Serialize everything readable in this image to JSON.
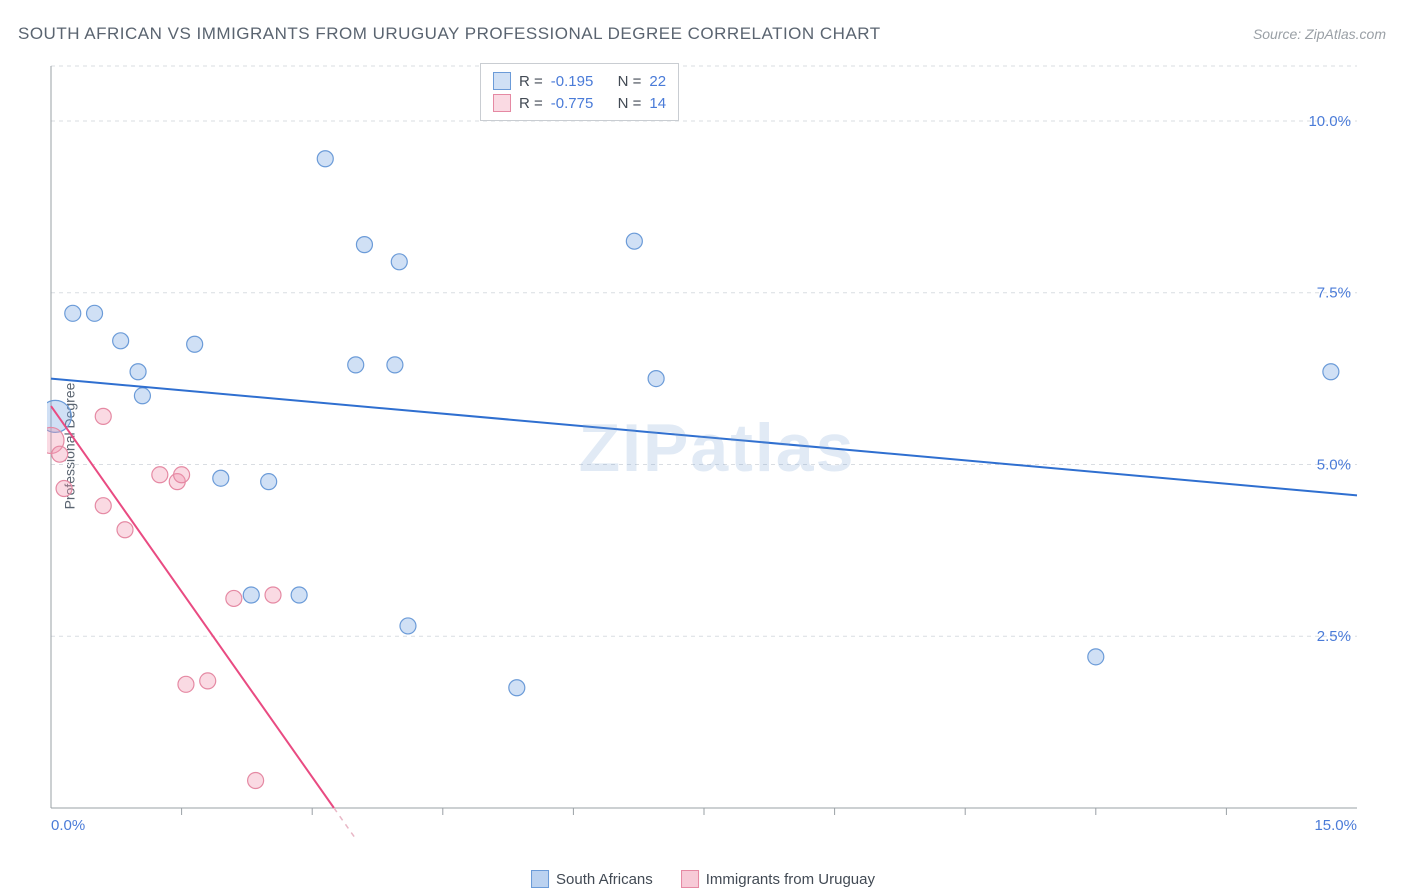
{
  "title": "SOUTH AFRICAN VS IMMIGRANTS FROM URUGUAY PROFESSIONAL DEGREE CORRELATION CHART",
  "source": "Source: ZipAtlas.com",
  "ylabel": "Professional Degree",
  "watermark": "ZIPatlas",
  "chart": {
    "type": "scatter",
    "xlim": [
      0,
      15
    ],
    "ylim": [
      0,
      10.8
    ],
    "xticks_major": [
      0,
      15
    ],
    "xticks_minor": [
      1.5,
      3.0,
      4.5,
      6.0,
      7.5,
      9.0,
      10.5,
      12,
      13.5
    ],
    "yticks": [
      2.5,
      5.0,
      7.5,
      10.0
    ],
    "xtick_labels": {
      "0": "0.0%",
      "15": "15.0%"
    },
    "ytick_labels": {
      "2.5": "2.5%",
      "5.0": "5.0%",
      "7.5": "7.5%",
      "10.0": "10.0%"
    },
    "grid_color": "#d9dde2",
    "axis_color": "#9aa0a6",
    "tick_color": "#4a7bd8",
    "background_color": "#ffffff",
    "series": [
      {
        "name": "South Africans",
        "fill": "rgba(120,165,225,0.35)",
        "stroke": "#6b9bd8",
        "line_color": "#2f6fd0",
        "line_width": 2,
        "R": "-0.195",
        "N": "22",
        "points": [
          {
            "x": 0.05,
            "y": 5.7,
            "r": 16
          },
          {
            "x": 0.25,
            "y": 7.2,
            "r": 8
          },
          {
            "x": 0.5,
            "y": 7.2,
            "r": 8
          },
          {
            "x": 0.8,
            "y": 6.8,
            "r": 8
          },
          {
            "x": 1.0,
            "y": 6.35,
            "r": 8
          },
          {
            "x": 1.05,
            "y": 6.0,
            "r": 8
          },
          {
            "x": 1.65,
            "y": 6.75,
            "r": 8
          },
          {
            "x": 1.95,
            "y": 4.8,
            "r": 8
          },
          {
            "x": 2.3,
            "y": 3.1,
            "r": 8
          },
          {
            "x": 2.5,
            "y": 4.75,
            "r": 8
          },
          {
            "x": 2.85,
            "y": 3.1,
            "r": 8
          },
          {
            "x": 3.15,
            "y": 9.45,
            "r": 8
          },
          {
            "x": 3.5,
            "y": 6.45,
            "r": 8
          },
          {
            "x": 3.6,
            "y": 8.2,
            "r": 8
          },
          {
            "x": 3.95,
            "y": 6.45,
            "r": 8
          },
          {
            "x": 4.0,
            "y": 7.95,
            "r": 8
          },
          {
            "x": 4.1,
            "y": 2.65,
            "r": 8
          },
          {
            "x": 5.35,
            "y": 1.75,
            "r": 8
          },
          {
            "x": 6.7,
            "y": 8.25,
            "r": 8
          },
          {
            "x": 6.95,
            "y": 6.25,
            "r": 8
          },
          {
            "x": 12.0,
            "y": 2.2,
            "r": 8
          },
          {
            "x": 14.7,
            "y": 6.35,
            "r": 8
          }
        ],
        "trend": {
          "x1": 0,
          "y1": 6.25,
          "x2": 15,
          "y2": 4.55
        }
      },
      {
        "name": "Immigrants from Uruguay",
        "fill": "rgba(240,150,175,0.35)",
        "stroke": "#e589a3",
        "line_color": "#e94b82",
        "line_width": 2,
        "R": "-0.775",
        "N": "14",
        "points": [
          {
            "x": 0.0,
            "y": 5.35,
            "r": 13
          },
          {
            "x": 0.1,
            "y": 5.15,
            "r": 8
          },
          {
            "x": 0.15,
            "y": 4.65,
            "r": 8
          },
          {
            "x": 0.6,
            "y": 5.7,
            "r": 8
          },
          {
            "x": 0.6,
            "y": 4.4,
            "r": 8
          },
          {
            "x": 0.85,
            "y": 4.05,
            "r": 8
          },
          {
            "x": 1.25,
            "y": 4.85,
            "r": 8
          },
          {
            "x": 1.45,
            "y": 4.75,
            "r": 8
          },
          {
            "x": 1.5,
            "y": 4.85,
            "r": 8
          },
          {
            "x": 1.55,
            "y": 1.8,
            "r": 8
          },
          {
            "x": 1.8,
            "y": 1.85,
            "r": 8
          },
          {
            "x": 2.1,
            "y": 3.05,
            "r": 8
          },
          {
            "x": 2.55,
            "y": 3.1,
            "r": 8
          },
          {
            "x": 2.35,
            "y": 0.4,
            "r": 8
          }
        ],
        "trend": {
          "x1": 0,
          "y1": 5.85,
          "x2": 3.25,
          "y2": 0
        }
      }
    ]
  },
  "legend": [
    {
      "label": "South Africans",
      "fill": "rgba(120,165,225,0.5)",
      "stroke": "#6b9bd8"
    },
    {
      "label": "Immigrants from Uruguay",
      "fill": "rgba(240,150,175,0.5)",
      "stroke": "#e589a3"
    }
  ]
}
